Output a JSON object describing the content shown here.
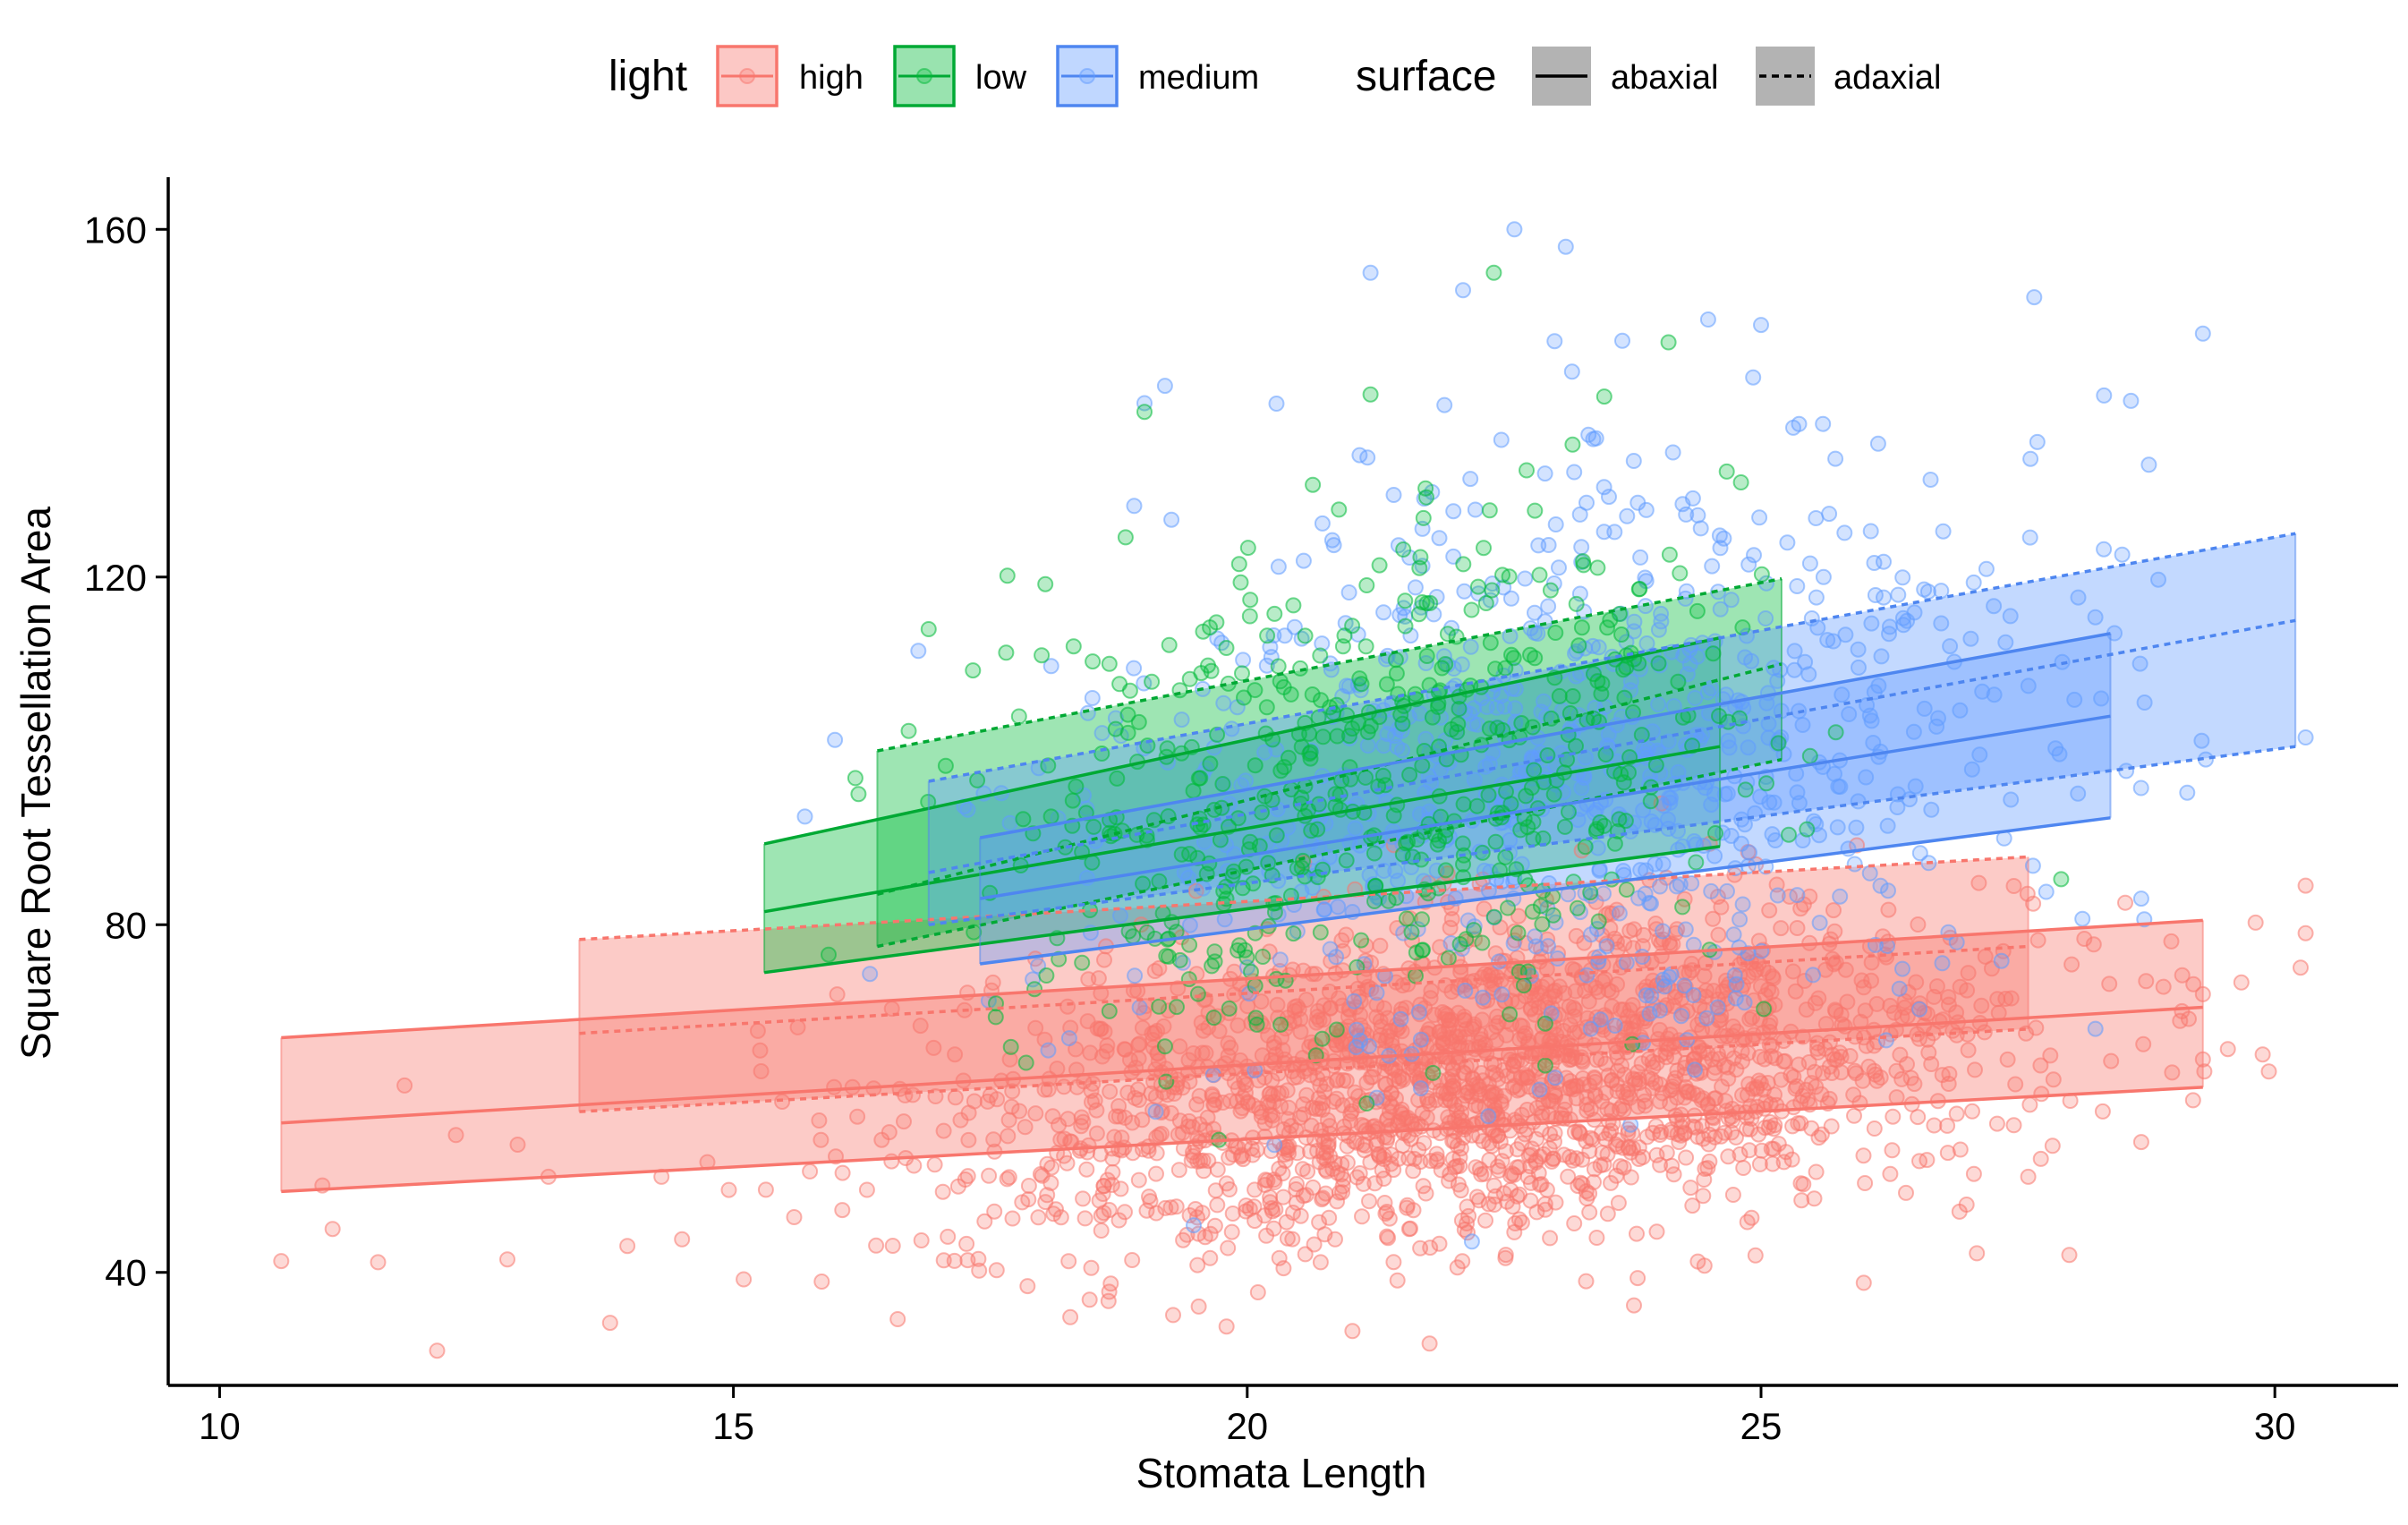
{
  "chart_data": {
    "type": "scatter",
    "title": "",
    "xlabel": "Stomata Length",
    "ylabel": "Square Root Tessellation Area",
    "xlim": [
      9.5,
      31.2
    ],
    "ylim": [
      27,
      166
    ],
    "xticks": [
      10,
      15,
      20,
      25,
      30
    ],
    "yticks": [
      40,
      80,
      120,
      160
    ],
    "xtick_labels": [
      "10",
      "15",
      "20",
      "25",
      "30"
    ],
    "ytick_labels": [
      "40",
      "80",
      "120",
      "160"
    ],
    "grid": false,
    "legend_position": "top",
    "legend": {
      "light": {
        "title": "light",
        "items": [
          "high",
          "low",
          "medium"
        ]
      },
      "surface": {
        "title": "surface",
        "items": [
          "abaxial",
          "adaxial"
        ]
      }
    },
    "colors": {
      "high": "#F8766D",
      "low": "#00BA38",
      "medium": "#619CFF"
    },
    "ribbon_colors": {
      "high": "#F8766D",
      "low": "#00A934",
      "medium": "#4E86F0"
    },
    "series": [
      {
        "light": "high",
        "surface": "abaxial",
        "x": [
          10.6,
          29.3
        ],
        "fit": [
          57.2,
          70.5
        ],
        "lower": [
          49.3,
          61.3
        ],
        "upper": [
          67.0,
          80.5
        ]
      },
      {
        "light": "high",
        "surface": "adaxial",
        "x": [
          13.5,
          27.6
        ],
        "fit": [
          67.5,
          77.5
        ],
        "lower": [
          58.5,
          68.0
        ],
        "upper": [
          78.3,
          87.8
        ]
      },
      {
        "light": "low",
        "surface": "abaxial",
        "x": [
          15.3,
          24.6
        ],
        "fit": [
          81.5,
          100.5
        ],
        "lower": [
          74.5,
          89.0
        ],
        "upper": [
          89.3,
          113.0
        ]
      },
      {
        "light": "low",
        "surface": "adaxial",
        "x": [
          16.4,
          25.2
        ],
        "fit": [
          83.5,
          110.0
        ],
        "lower": [
          77.5,
          99.0
        ],
        "upper": [
          100.0,
          119.8
        ]
      },
      {
        "light": "medium",
        "surface": "abaxial",
        "x": [
          17.4,
          28.4
        ],
        "fit": [
          83.0,
          104.0
        ],
        "lower": [
          75.5,
          92.3
        ],
        "upper": [
          90.0,
          113.5
        ]
      },
      {
        "light": "medium",
        "surface": "adaxial",
        "x": [
          16.9,
          30.2
        ],
        "fit": [
          86.0,
          115.0
        ],
        "lower": [
          80.0,
          100.5
        ],
        "upper": [
          96.5,
          125.0
        ]
      }
    ],
    "points": {
      "high": {
        "count": 2050,
        "x_mean": 22.3,
        "x_sd": 2.6,
        "y_mean": 62.0,
        "y_sd": 9.0,
        "tail_points": [
          [
            10.6,
            41.3
          ],
          [
            11.0,
            50.0
          ],
          [
            11.1,
            45.0
          ],
          [
            11.8,
            61.5
          ],
          [
            12.3,
            55.8
          ],
          [
            12.8,
            41.5
          ],
          [
            12.9,
            54.7
          ],
          [
            13.2,
            51.0
          ],
          [
            13.8,
            34.2
          ],
          [
            14.3,
            51.0
          ],
          [
            14.5,
            43.8
          ],
          [
            15.1,
            39.2
          ],
          [
            29.3,
            72.0
          ],
          [
            29.3,
            64.5
          ],
          [
            29.0,
            63.0
          ],
          [
            28.7,
            55.0
          ],
          [
            28.0,
            42.0
          ],
          [
            27.1,
            42.2
          ],
          [
            27.0,
            47.8
          ],
          [
            26.0,
            38.8
          ],
          [
            27.6,
            51.0
          ]
        ]
      },
      "low": {
        "count": 520,
        "x_mean": 21.2,
        "x_sd": 1.8,
        "y_mean": 96.0,
        "y_sd": 14.0,
        "tail_points": [
          [
            22.4,
            155.0
          ],
          [
            24.1,
            147.0
          ],
          [
            21.2,
            141.0
          ],
          [
            19.0,
            139.0
          ],
          [
            16.9,
            114.0
          ],
          [
            18.0,
            111.0
          ],
          [
            19.2,
            66.0
          ]
        ]
      },
      "medium": {
        "count": 800,
        "x_mean": 23.3,
        "x_sd": 2.3,
        "y_mean": 100.0,
        "y_sd": 17.0,
        "tail_points": [
          [
            22.6,
            160.0
          ],
          [
            23.1,
            158.0
          ],
          [
            21.2,
            155.0
          ],
          [
            22.1,
            153.0
          ],
          [
            25.0,
            149.0
          ],
          [
            29.3,
            148.0
          ],
          [
            19.2,
            142.0
          ],
          [
            19.0,
            140.0
          ],
          [
            28.7,
            83.0
          ],
          [
            16.8,
            111.5
          ]
        ]
      }
    }
  }
}
